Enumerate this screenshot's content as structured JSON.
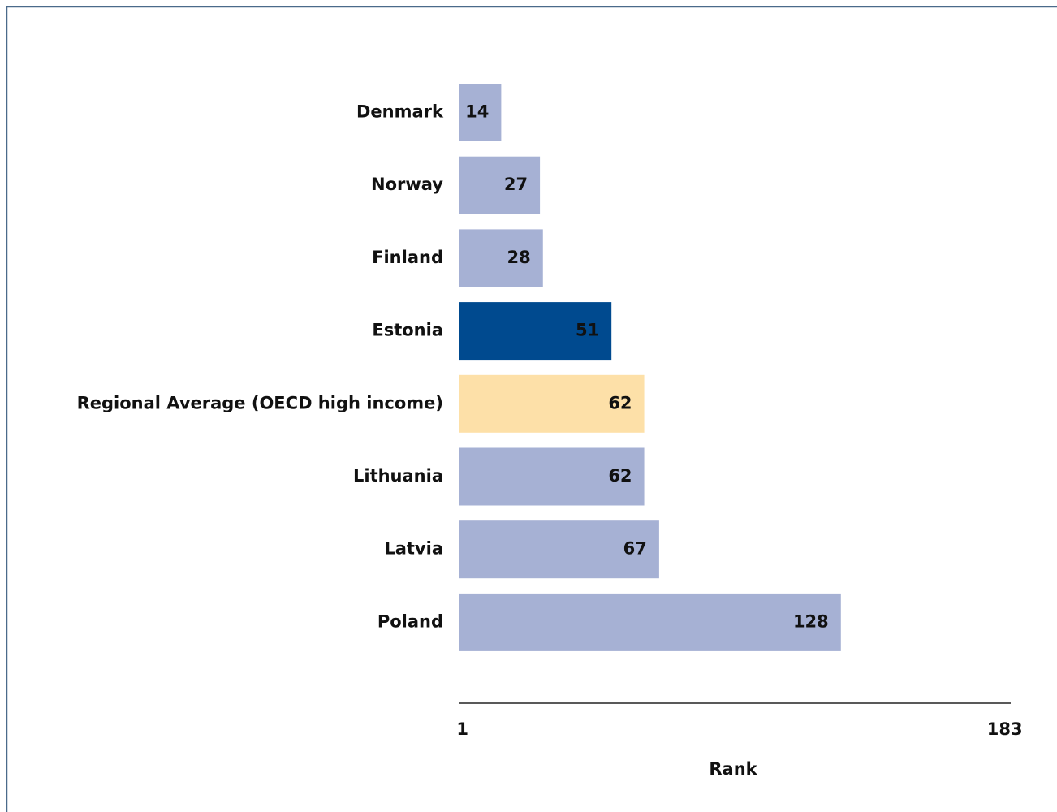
{
  "chart_data": {
    "type": "barh",
    "categories": [
      "Denmark",
      "Norway",
      "Finland",
      "Estonia",
      "Regional Average (OECD high income)",
      "Lithuania",
      "Latvia",
      "Poland"
    ],
    "values": [
      14,
      27,
      28,
      51,
      62,
      62,
      67,
      128
    ],
    "colors": [
      "#a6b1d4",
      "#a6b1d4",
      "#a6b1d4",
      "#004a8f",
      "#fde0a8",
      "#a6b1d4",
      "#a6b1d4",
      "#a6b1d4"
    ],
    "xlabel": "Rank",
    "xlim": [
      0,
      185
    ],
    "xticks": [
      1,
      183
    ],
    "grid": false
  }
}
